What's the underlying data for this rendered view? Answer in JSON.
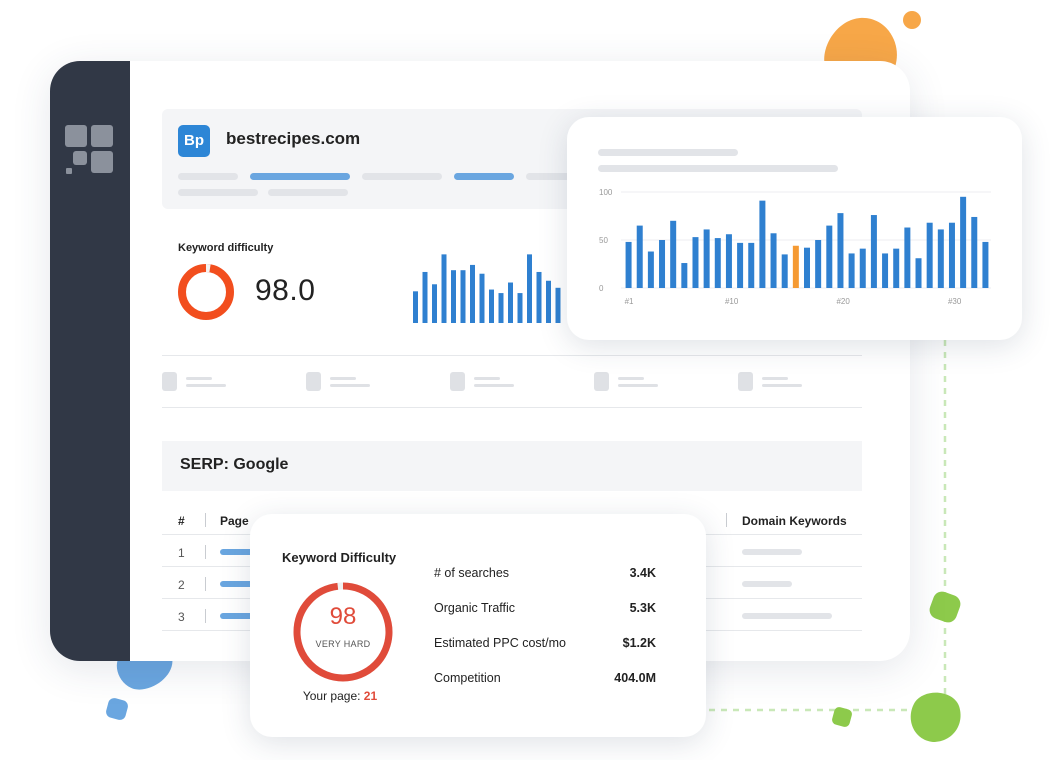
{
  "site": {
    "badge": "Bp",
    "name": "bestrecipes.com"
  },
  "keyword_difficulty": {
    "label": "Keyword difficulty",
    "value": "98.0"
  },
  "serp": {
    "title": "SERP: Google",
    "columns": {
      "num": "#",
      "page": "Page",
      "domain_keywords": "Domain Keywords"
    },
    "rows": [
      "1",
      "2",
      "3"
    ]
  },
  "chart_data": {
    "type": "bar",
    "yticks": [
      "100",
      "50",
      "0"
    ],
    "ylim": [
      0,
      100
    ],
    "xtick_labels": [
      "#1",
      "#10",
      "#20",
      "#30"
    ],
    "x": [
      1,
      2,
      3,
      4,
      5,
      6,
      7,
      8,
      9,
      10,
      11,
      12,
      13,
      14,
      15,
      16,
      17,
      18,
      19,
      20,
      21,
      22,
      23,
      24,
      25,
      26,
      27,
      28,
      29,
      30,
      31,
      32,
      33
    ],
    "values": [
      48,
      65,
      38,
      50,
      70,
      26,
      53,
      61,
      52,
      56,
      47,
      47,
      91,
      57,
      35,
      44,
      42,
      50,
      65,
      78,
      36,
      41,
      76,
      36,
      41,
      63,
      31,
      68,
      61,
      68,
      95,
      74,
      48
    ],
    "highlight_index": 15,
    "colors": {
      "bar": "#2f80d0",
      "highlight": "#f59a33"
    }
  },
  "kd_popup": {
    "title": "Keyword Difficulty",
    "score": "98",
    "score_label": "VERY HARD",
    "score_percent": 98,
    "your_page_label": "Your page:",
    "your_page_value": "21",
    "stats": [
      {
        "label": "# of searches",
        "value": "3.4K"
      },
      {
        "label": "Organic Traffic",
        "value": "5.3K"
      },
      {
        "label": "Estimated PPC cost/mo",
        "value": "$1.2K"
      },
      {
        "label": "Competition",
        "value": "404.0M"
      }
    ]
  },
  "colors": {
    "accent_blue": "#2d86d6",
    "danger_red": "#e04b3a",
    "orange": "#f24e1e",
    "sidebar": "#313846"
  }
}
